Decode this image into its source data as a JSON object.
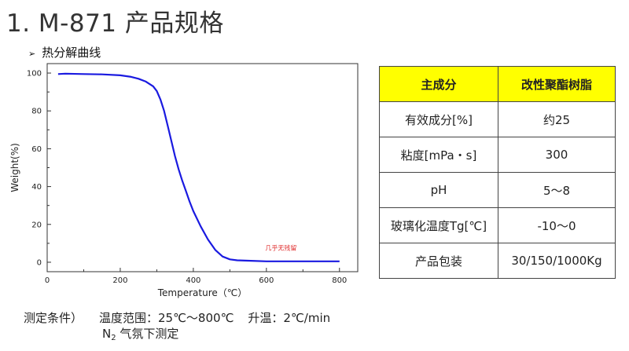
{
  "page": {
    "title": "1. M-871 产品规格",
    "subtitle": "热分解曲线"
  },
  "colors": {
    "curve": "#1a1ae0",
    "header_bg": "#ffff00",
    "watermark": "#e03030"
  },
  "chart_data": {
    "type": "line",
    "xlabel": "Temperature（℃）",
    "ylabel": "Weight(%)",
    "xlim": [
      0,
      850
    ],
    "ylim": [
      -5,
      105
    ],
    "xticks": [
      0,
      200,
      400,
      600,
      800
    ],
    "yticks": [
      0,
      20,
      40,
      60,
      80,
      100
    ],
    "grid": false,
    "annotation": "几乎无残留",
    "series": [
      {
        "x": [
          30,
          50,
          100,
          150,
          200,
          230,
          250,
          270,
          290,
          300,
          310,
          320,
          330,
          340,
          350,
          360,
          370,
          380,
          390,
          400,
          420,
          440,
          460,
          480,
          500,
          520,
          550,
          600,
          700,
          800
        ],
        "values": [
          99.5,
          99.7,
          99.5,
          99.3,
          98.8,
          98.0,
          97.0,
          95.5,
          93.0,
          90.5,
          86.0,
          80.0,
          72.0,
          64.0,
          56.0,
          49.0,
          43.0,
          37.5,
          32.0,
          27.0,
          19.0,
          12.0,
          6.5,
          3.0,
          1.5,
          1.0,
          0.8,
          0.5,
          0.5,
          0.5
        ]
      }
    ]
  },
  "table": {
    "headers": [
      "主成分",
      "改性聚酯树脂"
    ],
    "rows": [
      [
        "有效成分[%]",
        "约25"
      ],
      [
        "粘度[mPa・s]",
        "300"
      ],
      [
        "pH",
        "5～8"
      ],
      [
        "玻璃化温度Tg[℃]",
        "-10～0"
      ],
      [
        "产品包装",
        "30/150/1000Kg"
      ]
    ]
  },
  "conditions": {
    "label": "测定条件）",
    "temp_range": "温度范围：25℃～800℃",
    "heating": "升温：2℃/min",
    "atmosphere_n": "N",
    "atmosphere_sub": "2",
    "atmosphere_rest": " 气氛下测定"
  }
}
